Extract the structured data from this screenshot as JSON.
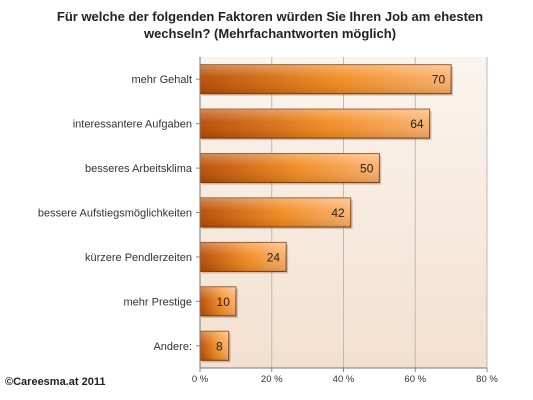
{
  "header": {
    "title_line1": "Für welche der folgenden Faktoren würden Sie Ihren Job am ehesten",
    "title_line2": "wechseln? (Mehrfachantworten möglich)"
  },
  "footer": {
    "credit": "©Careesma.at 2011"
  },
  "colors": {
    "bar_light": "#fbb06a",
    "bar_mid": "#f28a1e",
    "bar_dark": "#b84a00",
    "bar_border": "#8a3a00",
    "plot_bg_top": "#fbf4ee",
    "plot_bg_bottom": "#f3e0cf",
    "grid": "#bbbbbb"
  },
  "chart_data": {
    "type": "bar",
    "orientation": "horizontal",
    "title": "Für welche der folgenden Faktoren würden Sie Ihren Job am ehesten wechseln? (Mehrfachantworten möglich)",
    "categories": [
      "mehr Gehalt",
      "interessantere Aufgaben",
      "besseres Arbeitsklima",
      "bessere Aufstiegsmöglichkeiten",
      "kürzere Pendlerzeiten",
      "mehr Prestige",
      "Andere:"
    ],
    "values": [
      70,
      64,
      50,
      42,
      24,
      10,
      8
    ],
    "value_labels": [
      "70",
      "64",
      "50",
      "42",
      "24",
      "10",
      "8"
    ],
    "xlim": [
      0,
      80
    ],
    "xticks": [
      0,
      20,
      40,
      60,
      80
    ],
    "xtick_labels": [
      "0 %",
      "20 %",
      "40 %",
      "60 %",
      "80 %"
    ],
    "xlabel": "",
    "ylabel": "",
    "grid": true,
    "legend": "none"
  }
}
